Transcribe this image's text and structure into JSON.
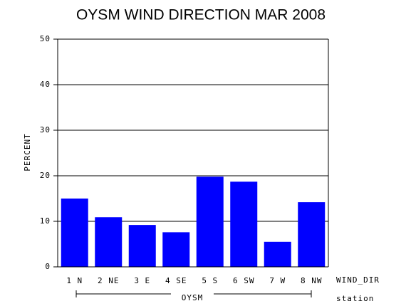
{
  "chart_data": {
    "type": "bar",
    "title": "OYSM WIND DIRECTION MAR 2008",
    "categories": [
      "1 N",
      "2 NE",
      "3 E",
      "4 SE",
      "5 S",
      "6 SW",
      "7 W",
      "8 NW"
    ],
    "values": [
      15.0,
      10.9,
      9.2,
      7.6,
      19.8,
      18.7,
      5.5,
      14.2
    ],
    "color": "#0000ff",
    "ylim": [
      0,
      50
    ],
    "yticks": [
      0,
      10,
      20,
      30,
      40,
      50
    ],
    "grid": true,
    "y_label": "PERCENT",
    "x_label": "WIND_DIR",
    "group_label": "OYSM",
    "group_axis_label": "station"
  }
}
